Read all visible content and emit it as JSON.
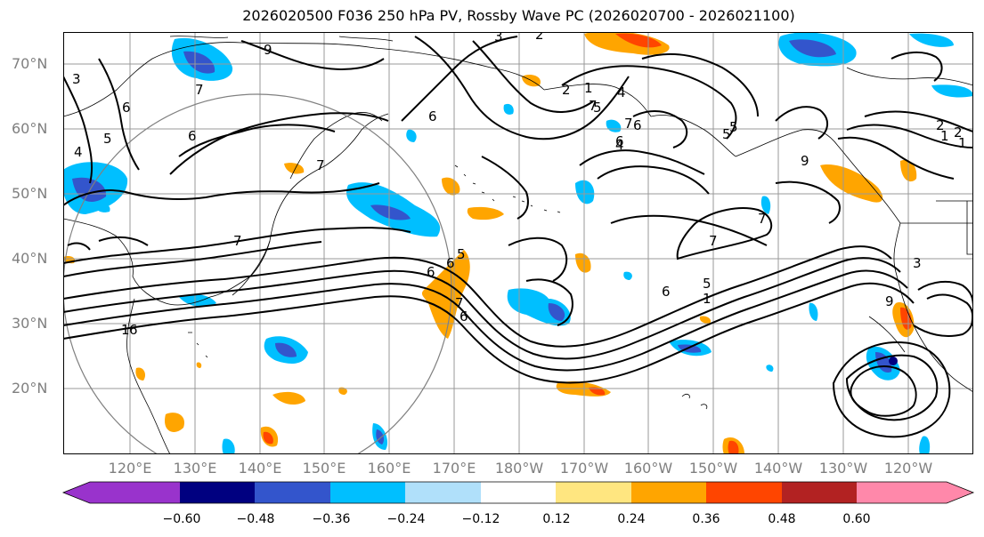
{
  "title": "2026020500 F036 250 hPa PV, Rossby Wave PC (2026020700 - 2026021100)",
  "lat_labels": [
    "70°N",
    "60°N",
    "50°N",
    "40°N",
    "30°N",
    "20°N"
  ],
  "lon_labels": [
    "120°E",
    "130°E",
    "140°E",
    "150°E",
    "160°E",
    "170°E",
    "180°W",
    "170°W",
    "160°W",
    "150°W",
    "140°W",
    "130°W",
    "120°W"
  ],
  "colorbar": {
    "tick_labels": [
      "−0.60",
      "−0.48",
      "−0.36",
      "−0.24",
      "−0.12",
      "0.12",
      "0.24",
      "0.36",
      "0.48",
      "0.60"
    ],
    "colors": [
      "#9933cc",
      "#000080",
      "#3355cc",
      "#00bfff",
      "#b0e0fa",
      "#ffffff",
      "#ffe680",
      "#ffa500",
      "#ff4500",
      "#b22222",
      "#ff88aa"
    ]
  },
  "contour_labels": [
    "3",
    "2",
    "7",
    "6",
    "5",
    "4",
    "6",
    "7",
    "7",
    "6",
    "2",
    "1",
    "7",
    "6",
    "4",
    "5",
    "7",
    "6",
    "5",
    "9",
    "1",
    "2",
    "3",
    "7",
    "7",
    "6",
    "5",
    "1",
    "9",
    "5",
    "6",
    "6",
    "4",
    "2",
    "1",
    "3",
    "9",
    "6",
    "1",
    "7",
    "6",
    "5"
  ],
  "colors": {
    "land_border": "#000000",
    "grid": "#999999",
    "circle": "#808080"
  }
}
